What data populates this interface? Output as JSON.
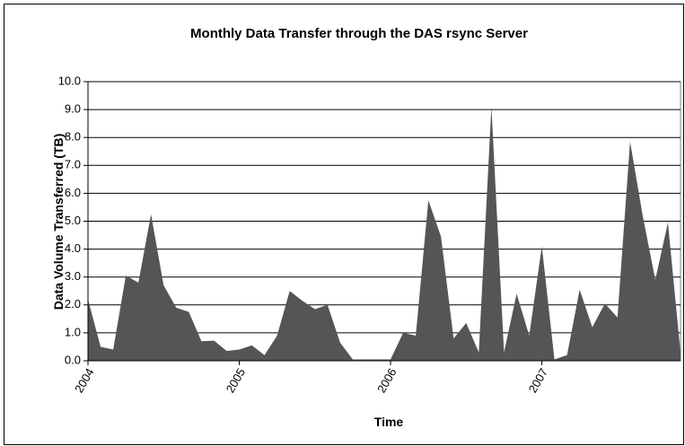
{
  "chart_data": {
    "type": "area",
    "title": "Monthly Data Transfer through the DAS rsync Server",
    "x_label": "Time",
    "y_label": "Data Volume Transferred (TB)",
    "categories": [
      "2004",
      null,
      null,
      null,
      null,
      null,
      null,
      null,
      null,
      null,
      null,
      null,
      "2005",
      null,
      null,
      null,
      null,
      null,
      null,
      null,
      null,
      null,
      null,
      null,
      "2006",
      null,
      null,
      null,
      null,
      null,
      null,
      null,
      null,
      null,
      null,
      null,
      "2007",
      null,
      null,
      null,
      null,
      null,
      null,
      null,
      null,
      null,
      null,
      null
    ],
    "values": [
      2.2,
      0.5,
      0.4,
      3.05,
      2.8,
      5.25,
      2.7,
      1.9,
      1.75,
      0.7,
      0.72,
      0.35,
      0.4,
      0.55,
      0.2,
      0.9,
      2.5,
      2.15,
      1.85,
      2.0,
      0.65,
      0.05,
      0.05,
      0.05,
      0.05,
      1.0,
      0.9,
      5.75,
      4.45,
      0.8,
      1.35,
      0.3,
      9.1,
      0.3,
      2.4,
      0.9,
      4.1,
      0.05,
      0.2,
      2.55,
      1.2,
      2.05,
      1.55,
      7.85,
      5.2,
      2.9,
      4.95,
      0.3
    ],
    "color": "#555555",
    "ylim": [
      0,
      10
    ],
    "yticks": [
      {
        "value": 0,
        "label": "0.0"
      },
      {
        "value": 1,
        "label": "1.0"
      },
      {
        "value": 2,
        "label": "2.0"
      },
      {
        "value": 3,
        "label": "3.0"
      },
      {
        "value": 4,
        "label": "4.0"
      },
      {
        "value": 5,
        "label": "5.0"
      },
      {
        "value": 6,
        "label": "6.0"
      },
      {
        "value": 7,
        "label": "7.0"
      },
      {
        "value": 8,
        "label": "8.0"
      },
      {
        "value": 9,
        "label": "9.0"
      },
      {
        "value": 10,
        "label": "10.0"
      }
    ],
    "grid": true
  }
}
